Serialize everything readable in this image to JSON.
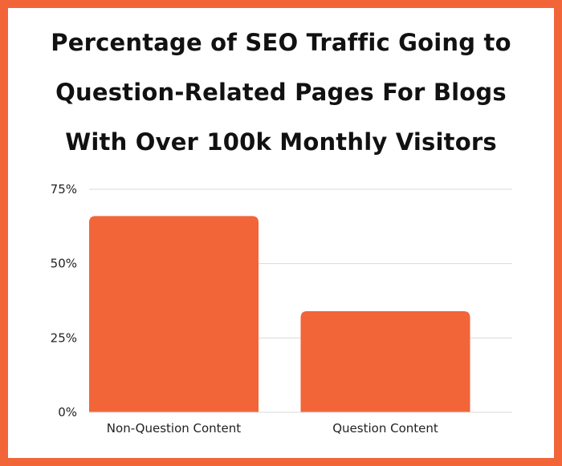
{
  "chart_data": {
    "type": "bar",
    "title": "Percentage of SEO Traffic Going to Question-Related Pages For Blogs With Over 100k Monthly Visitors",
    "title_lines": [
      "Percentage of SEO Traffic Going to",
      "Question-Related Pages For Blogs",
      "With Over 100k Monthly Visitors"
    ],
    "categories": [
      "Non-Question Content",
      "Question Content"
    ],
    "values": [
      66,
      34
    ],
    "yticks": [
      {
        "value": 0,
        "label": "0%"
      },
      {
        "value": 25,
        "label": "25%"
      },
      {
        "value": 50,
        "label": "50%"
      },
      {
        "value": 75,
        "label": "75%"
      }
    ],
    "ylim": [
      0,
      75
    ],
    "xlabel": "",
    "ylabel": "",
    "grid": true,
    "colors": {
      "bar": "#f26539",
      "border": "#f26539",
      "grid": "#d9d9d9"
    }
  }
}
